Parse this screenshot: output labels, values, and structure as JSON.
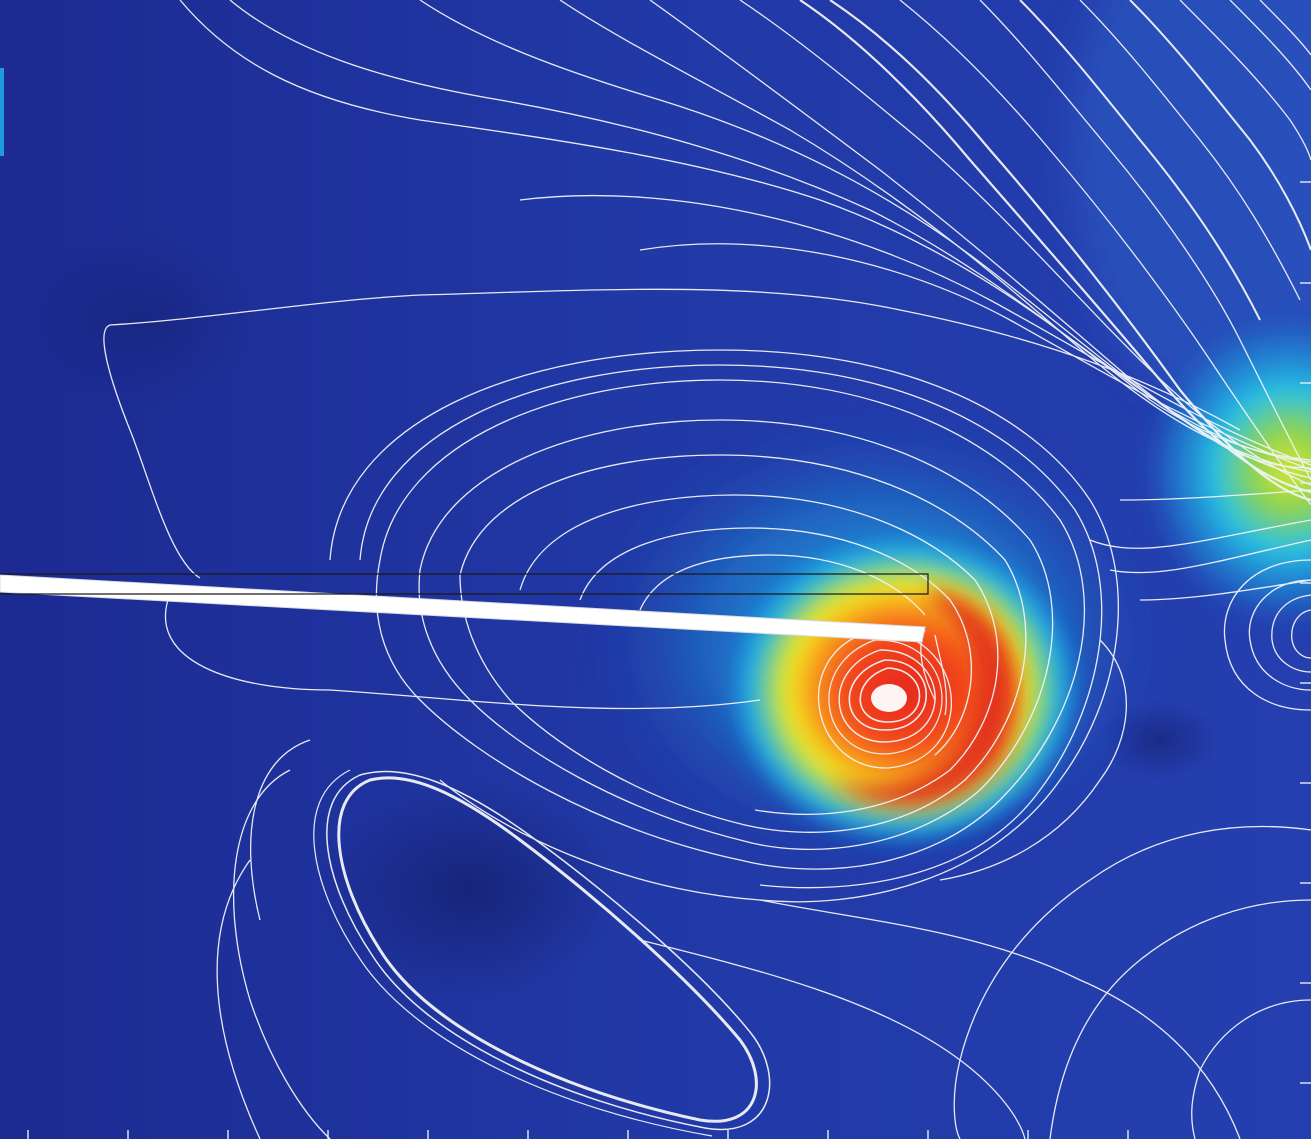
{
  "figure": {
    "kind": "flow-visualization",
    "colormap": "jet",
    "colors": {
      "background_low": "#1a2a8f",
      "mid_cyan": "#19b4ec",
      "mid_green": "#8fd33a",
      "yellow": "#f5e91a",
      "orange": "#f88a1c",
      "high_red": "#e52a1a",
      "streamline": "#f2f4f8",
      "plate": "#ffffff",
      "accent": "#1e9be0"
    },
    "elements": [
      "velocity-field",
      "streamlines",
      "plate",
      "vortex-core",
      "tick-marks"
    ]
  }
}
